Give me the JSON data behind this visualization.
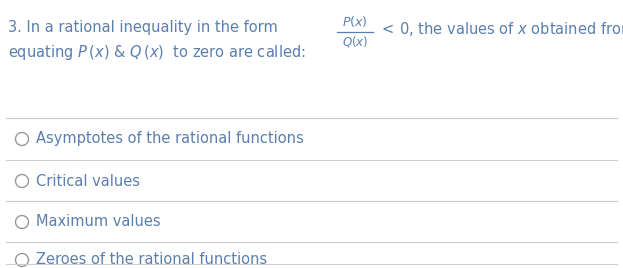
{
  "background_color": "#ffffff",
  "text_color_blue": "#5b7fad",
  "line_color": "#cccccc",
  "options": [
    "Asymptotes of the rational functions",
    "Critical values",
    "Maximum values",
    "Zeroes of the rational functions"
  ],
  "fontsize_question": 10.5,
  "fontsize_option": 10.5,
  "fig_width": 6.23,
  "fig_height": 2.68,
  "dpi": 100
}
